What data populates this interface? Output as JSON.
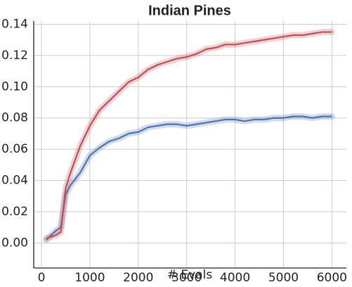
{
  "chart_data": {
    "type": "line",
    "title": "Indian Pines",
    "xlabel": "# Evals",
    "x": [
      100,
      200,
      300,
      400,
      500,
      600,
      800,
      1000,
      1200,
      1400,
      1600,
      1800,
      2000,
      2200,
      2400,
      2600,
      2800,
      3000,
      3200,
      3400,
      3600,
      3800,
      4000,
      4200,
      4400,
      4600,
      4800,
      5000,
      5200,
      5400,
      5600,
      5800,
      6000
    ],
    "series": [
      {
        "color": "#4c72b0",
        "values": [
          0.002,
          0.005,
          0.008,
          0.01,
          0.031,
          0.037,
          0.045,
          0.056,
          0.061,
          0.065,
          0.067,
          0.07,
          0.071,
          0.074,
          0.075,
          0.076,
          0.076,
          0.075,
          0.076,
          0.077,
          0.078,
          0.079,
          0.079,
          0.078,
          0.079,
          0.079,
          0.08,
          0.08,
          0.081,
          0.081,
          0.08,
          0.081,
          0.081
        ]
      },
      {
        "color": "#c44e52",
        "values": [
          0.003,
          0.004,
          0.005,
          0.007,
          0.035,
          0.045,
          0.062,
          0.075,
          0.085,
          0.091,
          0.097,
          0.103,
          0.106,
          0.111,
          0.114,
          0.116,
          0.118,
          0.119,
          0.121,
          0.124,
          0.125,
          0.127,
          0.127,
          0.128,
          0.129,
          0.13,
          0.131,
          0.132,
          0.133,
          0.133,
          0.134,
          0.135,
          0.135
        ]
      }
    ],
    "xlim": [
      -160,
      6300
    ],
    "ylim": [
      -0.016,
      0.142
    ],
    "xticks": [
      0,
      1000,
      2000,
      3000,
      4000,
      5000,
      6000
    ],
    "yticks": [
      {
        "value": 0,
        "label": "0.00"
      },
      0.02,
      0.04,
      0.06,
      0.08,
      {
        "value": 0.1,
        "label": "0.10"
      },
      0.12,
      0.14
    ],
    "grid": true
  }
}
